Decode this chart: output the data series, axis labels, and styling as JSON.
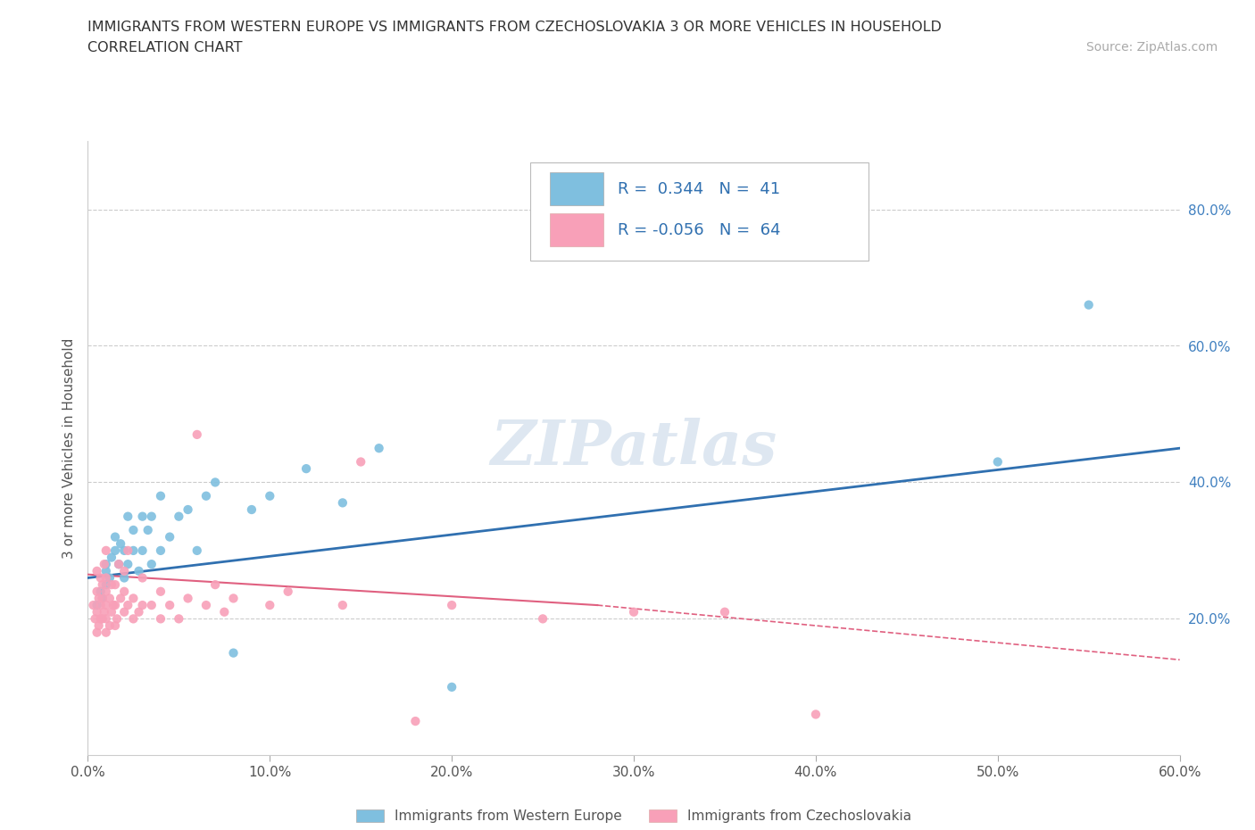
{
  "title_line1": "IMMIGRANTS FROM WESTERN EUROPE VS IMMIGRANTS FROM CZECHOSLOVAKIA 3 OR MORE VEHICLES IN HOUSEHOLD",
  "title_line2": "CORRELATION CHART",
  "source_text": "Source: ZipAtlas.com",
  "ylabel": "3 or more Vehicles in Household",
  "xlim": [
    0.0,
    0.6
  ],
  "ylim": [
    0.0,
    0.9
  ],
  "xtick_labels": [
    "0.0%",
    "",
    "",
    "",
    "",
    "",
    "",
    "",
    "",
    "",
    "10.0%",
    "",
    "",
    "",
    "",
    "",
    "",
    "",
    "",
    "",
    "20.0%",
    "",
    "",
    "",
    "",
    "",
    "",
    "",
    "",
    "",
    "30.0%",
    "",
    "",
    "",
    "",
    "",
    "",
    "",
    "",
    "",
    "40.0%",
    "",
    "",
    "",
    "",
    "",
    "",
    "",
    "",
    "",
    "50.0%",
    "",
    "",
    "",
    "",
    "",
    "",
    "",
    "",
    "",
    "60.0%"
  ],
  "xtick_values": [
    0.0,
    0.01,
    0.02,
    0.03,
    0.04,
    0.05,
    0.06,
    0.07,
    0.08,
    0.09,
    0.1,
    0.11,
    0.12,
    0.13,
    0.14,
    0.15,
    0.16,
    0.17,
    0.18,
    0.19,
    0.2,
    0.21,
    0.22,
    0.23,
    0.24,
    0.25,
    0.26,
    0.27,
    0.28,
    0.29,
    0.3,
    0.31,
    0.32,
    0.33,
    0.34,
    0.35,
    0.36,
    0.37,
    0.38,
    0.39,
    0.4,
    0.41,
    0.42,
    0.43,
    0.44,
    0.45,
    0.46,
    0.47,
    0.48,
    0.49,
    0.5,
    0.51,
    0.52,
    0.53,
    0.54,
    0.55,
    0.56,
    0.57,
    0.58,
    0.59,
    0.6
  ],
  "ytick_labels": [
    "20.0%",
    "40.0%",
    "60.0%",
    "80.0%"
  ],
  "ytick_values": [
    0.2,
    0.4,
    0.6,
    0.8
  ],
  "blue_color": "#7fbfdf",
  "pink_color": "#f8a0b8",
  "blue_line_color": "#3070b0",
  "pink_line_color": "#e06080",
  "grid_color": "#cccccc",
  "R_blue": 0.344,
  "N_blue": 41,
  "R_pink": -0.056,
  "N_pink": 64,
  "legend_label_blue": "Immigrants from Western Europe",
  "legend_label_pink": "Immigrants from Czechoslovakia",
  "watermark_text": "ZIPatlas",
  "blue_line_start_y": 0.26,
  "blue_line_end_y": 0.45,
  "pink_line_start_y": 0.265,
  "pink_line_end_y": 0.14,
  "blue_scatter_x": [
    0.005,
    0.007,
    0.008,
    0.01,
    0.01,
    0.01,
    0.012,
    0.013,
    0.015,
    0.015,
    0.017,
    0.018,
    0.02,
    0.02,
    0.022,
    0.022,
    0.025,
    0.025,
    0.028,
    0.03,
    0.03,
    0.033,
    0.035,
    0.035,
    0.04,
    0.04,
    0.045,
    0.05,
    0.055,
    0.06,
    0.065,
    0.07,
    0.08,
    0.09,
    0.1,
    0.12,
    0.14,
    0.16,
    0.2,
    0.5,
    0.55
  ],
  "blue_scatter_y": [
    0.22,
    0.24,
    0.23,
    0.25,
    0.27,
    0.28,
    0.26,
    0.29,
    0.3,
    0.32,
    0.28,
    0.31,
    0.26,
    0.3,
    0.28,
    0.35,
    0.3,
    0.33,
    0.27,
    0.3,
    0.35,
    0.33,
    0.28,
    0.35,
    0.3,
    0.38,
    0.32,
    0.35,
    0.36,
    0.3,
    0.38,
    0.4,
    0.15,
    0.36,
    0.38,
    0.42,
    0.37,
    0.45,
    0.1,
    0.43,
    0.66
  ],
  "pink_scatter_x": [
    0.003,
    0.004,
    0.005,
    0.005,
    0.005,
    0.005,
    0.006,
    0.006,
    0.007,
    0.007,
    0.007,
    0.008,
    0.008,
    0.008,
    0.009,
    0.009,
    0.01,
    0.01,
    0.01,
    0.01,
    0.01,
    0.01,
    0.012,
    0.012,
    0.013,
    0.013,
    0.014,
    0.015,
    0.015,
    0.015,
    0.016,
    0.017,
    0.018,
    0.02,
    0.02,
    0.02,
    0.022,
    0.022,
    0.025,
    0.025,
    0.028,
    0.03,
    0.03,
    0.035,
    0.04,
    0.04,
    0.045,
    0.05,
    0.055,
    0.06,
    0.065,
    0.07,
    0.075,
    0.08,
    0.1,
    0.11,
    0.14,
    0.15,
    0.18,
    0.2,
    0.25,
    0.3,
    0.35,
    0.4
  ],
  "pink_scatter_y": [
    0.22,
    0.2,
    0.18,
    0.21,
    0.24,
    0.27,
    0.19,
    0.23,
    0.2,
    0.22,
    0.26,
    0.2,
    0.23,
    0.25,
    0.21,
    0.28,
    0.18,
    0.2,
    0.22,
    0.24,
    0.26,
    0.3,
    0.19,
    0.23,
    0.21,
    0.25,
    0.22,
    0.19,
    0.22,
    0.25,
    0.2,
    0.28,
    0.23,
    0.21,
    0.24,
    0.27,
    0.22,
    0.3,
    0.2,
    0.23,
    0.21,
    0.22,
    0.26,
    0.22,
    0.2,
    0.24,
    0.22,
    0.2,
    0.23,
    0.47,
    0.22,
    0.25,
    0.21,
    0.23,
    0.22,
    0.24,
    0.22,
    0.43,
    0.05,
    0.22,
    0.2,
    0.21,
    0.21,
    0.06
  ]
}
